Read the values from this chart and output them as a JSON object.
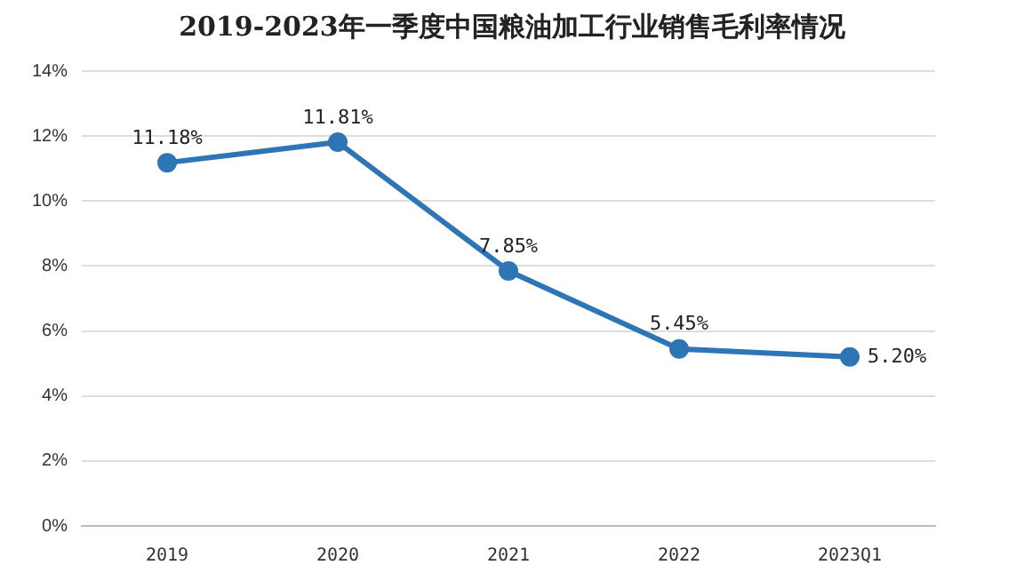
{
  "chart_data": {
    "type": "line",
    "title": "2019-2023年一季度中国粮油加工行业销售毛利率情况",
    "categories": [
      "2019",
      "2020",
      "2021",
      "2022",
      "2023Q1"
    ],
    "series": [
      {
        "color": "#2e75b6",
        "values": [
          11.18,
          11.81,
          7.85,
          5.45,
          5.2
        ],
        "value_labels": [
          "11.18%",
          "11.81%",
          "7.85%",
          "5.45%",
          "5.20%"
        ]
      }
    ],
    "ylim": [
      0,
      14
    ],
    "yticks": [
      {
        "value": 0,
        "label": "0%"
      },
      {
        "value": 2,
        "label": "2%"
      },
      {
        "value": 4,
        "label": "4%"
      },
      {
        "value": 6,
        "label": "6%"
      },
      {
        "value": 8,
        "label": "8%"
      },
      {
        "value": 10,
        "label": "10%"
      },
      {
        "value": 12,
        "label": "12%"
      },
      {
        "value": 14,
        "label": "14%"
      }
    ],
    "grid": "y",
    "legend": false,
    "marker": "circle",
    "line_style": "solid"
  }
}
